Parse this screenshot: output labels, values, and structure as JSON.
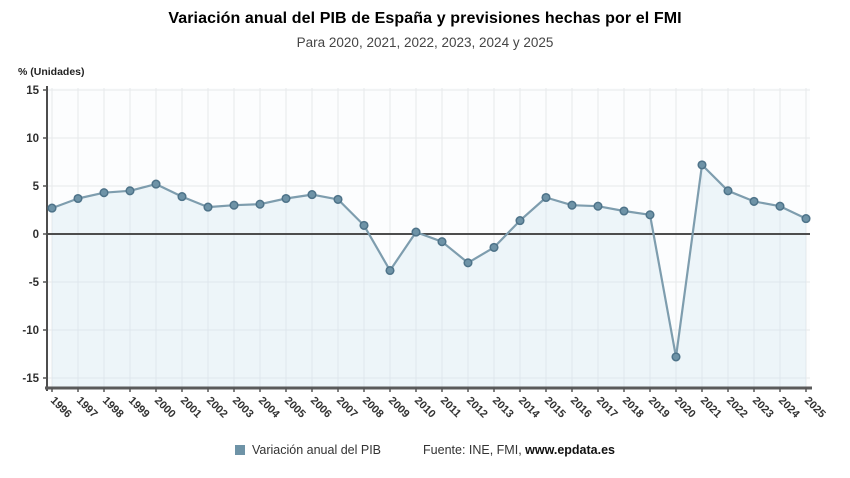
{
  "header": {
    "title": "Variación anual del PIB de España y previsiones hechas por el FMI",
    "subtitle": "Para 2020, 2021, 2022, 2023, 2024 y 2025"
  },
  "chart_data": {
    "type": "line",
    "title": "Variación anual del PIB de España y previsiones hechas por el FMI",
    "subtitle": "Para 2020, 2021, 2022, 2023, 2024 y 2025",
    "ylabel": "% (Unidades)",
    "xlabel": "",
    "categories": [
      "1996",
      "1997",
      "1998",
      "1999",
      "2000",
      "2001",
      "2002",
      "2003",
      "2004",
      "2005",
      "2006",
      "2007",
      "2008",
      "2009",
      "2010",
      "2011",
      "2012",
      "2013",
      "2014",
      "2015",
      "2016",
      "2017",
      "2018",
      "2019",
      "2020",
      "2021",
      "2022",
      "2023",
      "2024",
      "2025"
    ],
    "series": [
      {
        "name": "Variación anual del PIB",
        "values": [
          2.7,
          3.7,
          4.3,
          4.5,
          5.2,
          3.9,
          2.8,
          3.0,
          3.1,
          3.7,
          4.1,
          3.6,
          0.9,
          -3.8,
          0.2,
          -0.8,
          -3.0,
          -1.4,
          1.4,
          3.8,
          3.0,
          2.9,
          2.4,
          2.0,
          -12.8,
          7.2,
          4.5,
          3.4,
          2.9,
          1.6
        ]
      }
    ],
    "ylim": [
      -15,
      15
    ],
    "yticks": [
      15,
      10,
      5,
      0,
      -5,
      -10,
      -15
    ],
    "grid": true,
    "legend_position": "bottom",
    "colors": {
      "line": "#7e9dae",
      "marker_fill": "#6e93a7",
      "marker_stroke": "#4e7389",
      "area_fill": "rgba(208,228,240,0.35)",
      "grid": "#e6e9eb",
      "zero_line": "#4d4d4d",
      "axis": "#5a5a5a",
      "tick_label": "#2f2f2f"
    }
  },
  "legend": {
    "label": "Variación anual del PIB"
  },
  "footer": {
    "source_prefix": "Fuente: INE, FMI, ",
    "source_link": "www.epdata.es"
  }
}
